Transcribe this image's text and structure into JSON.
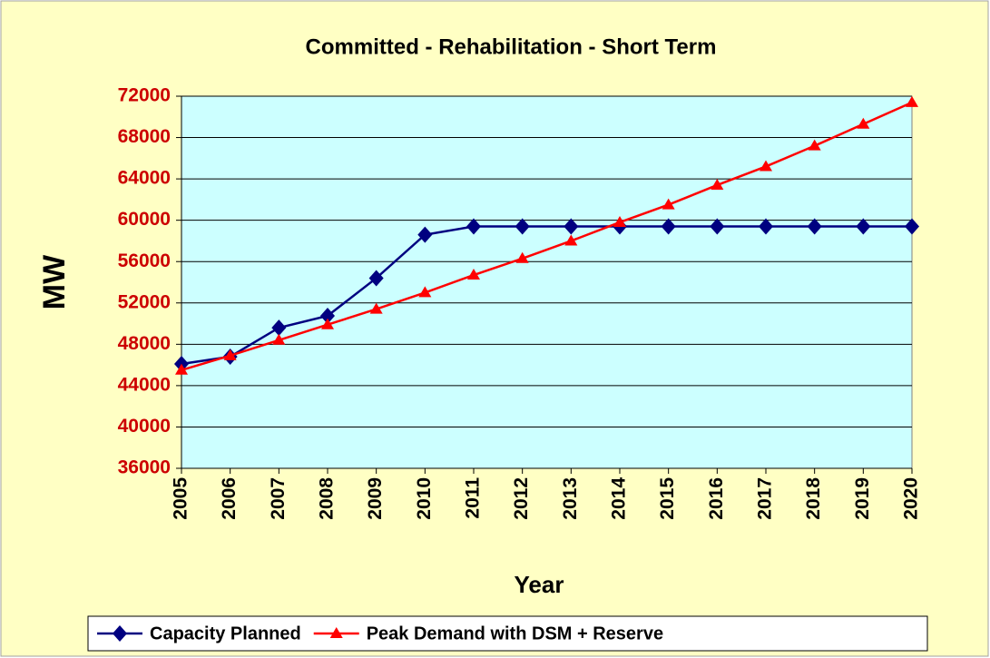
{
  "chart_data": {
    "type": "line",
    "title": "Committed - Rehabilitation - Short Term",
    "x_label": "Year",
    "y_label": "MW",
    "categories": [
      "2005",
      "2006",
      "2007",
      "2008",
      "2009",
      "2010",
      "2011",
      "2012",
      "2013",
      "2014",
      "2015",
      "2016",
      "2017",
      "2018",
      "2019",
      "2020"
    ],
    "series": [
      {
        "name": "Capacity Planned",
        "color": "#000080",
        "marker": "diamond",
        "values": [
          46100,
          46800,
          49600,
          50750,
          54400,
          58600,
          59400,
          59400,
          59400,
          59400,
          59400,
          59400,
          59400,
          59400,
          59400,
          59400
        ]
      },
      {
        "name": "Peak Demand with DSM + Reserve",
        "color": "#ff0000",
        "marker": "triangle",
        "values": [
          45500,
          46900,
          48400,
          49900,
          51400,
          53000,
          54700,
          56300,
          58000,
          59800,
          61500,
          63400,
          65200,
          67200,
          69300,
          71400
        ]
      }
    ],
    "ylim": [
      36000,
      72000
    ],
    "yticks": [
      36000,
      40000,
      44000,
      48000,
      52000,
      56000,
      60000,
      64000,
      68000,
      72000
    ],
    "grid": true,
    "legend": "bottom"
  }
}
